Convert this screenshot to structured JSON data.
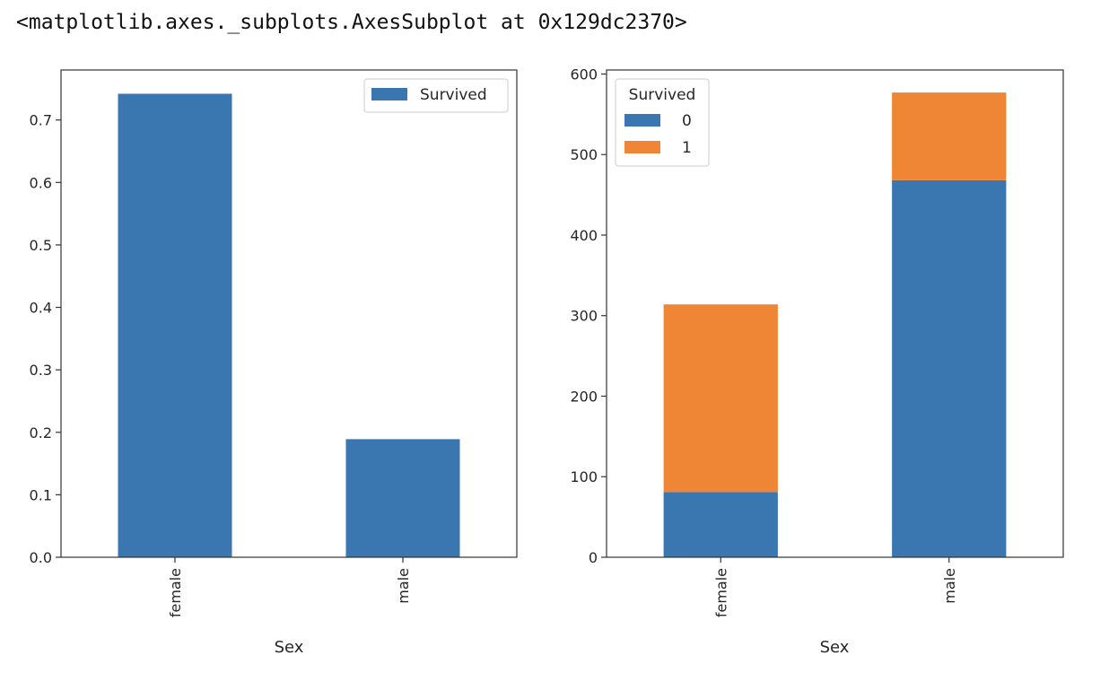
{
  "output_text": "<matplotlib.axes._subplots.AxesSubplot at 0x129dc2370>",
  "colors": {
    "blue": "#3a76af",
    "orange": "#ef8636"
  },
  "chart_data": [
    {
      "type": "bar",
      "categories": [
        "female",
        "male"
      ],
      "series": [
        {
          "name": "Survived",
          "values": [
            0.742,
            0.189
          ]
        }
      ],
      "xlabel": "Sex",
      "ylabel": "",
      "ylim": [
        0,
        0.78
      ],
      "yticks": [
        "0.0",
        "0.1",
        "0.2",
        "0.3",
        "0.4",
        "0.5",
        "0.6",
        "0.7"
      ],
      "legend": {
        "title": "",
        "placement": "upper-right"
      }
    },
    {
      "type": "bar",
      "stacked": true,
      "categories": [
        "female",
        "male"
      ],
      "series": [
        {
          "name": "0",
          "values": [
            81,
            468
          ]
        },
        {
          "name": "1",
          "values": [
            233,
            109
          ]
        }
      ],
      "xlabel": "Sex",
      "ylabel": "",
      "ylim": [
        0,
        605
      ],
      "yticks": [
        "0",
        "100",
        "200",
        "300",
        "400",
        "500",
        "600"
      ],
      "legend": {
        "title": "Survived",
        "placement": "upper-left"
      }
    }
  ]
}
